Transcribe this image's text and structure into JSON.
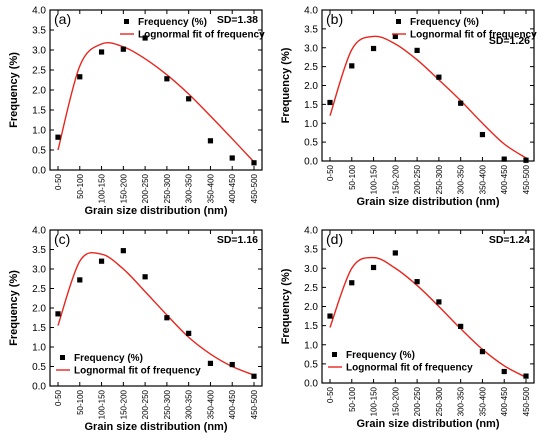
{
  "figure": {
    "ylabel": "Frequency (%)",
    "xlabel": "Grain size distribution (nm)",
    "legend": {
      "marker_label": "Frequency (%)",
      "fit_label": "Lognormal fit of frequency"
    },
    "colors": {
      "fit_line": "#e8261e",
      "marker": "#000000",
      "axes": "#000000"
    }
  },
  "chart_data": [
    {
      "type": "scatter",
      "panel": "(a)",
      "sd_label": "SD=1.38",
      "legend_position": "top-right",
      "categories": [
        "0-50",
        "50-100",
        "100-150",
        "150-200",
        "200-250",
        "250-300",
        "300-350",
        "350-400",
        "400-450",
        "450-500"
      ],
      "series": [
        {
          "name": "Frequency (%)",
          "values": [
            0.82,
            2.33,
            2.95,
            3.02,
            3.3,
            2.28,
            1.78,
            0.73,
            0.3,
            0.18
          ]
        },
        {
          "name": "Lognormal fit of frequency",
          "values": [
            0.5,
            2.6,
            3.15,
            3.08,
            2.78,
            2.38,
            1.9,
            1.35,
            0.78,
            0.2
          ]
        }
      ],
      "ylim": [
        0,
        4.0
      ],
      "yticks": [
        "0.0",
        "0.5",
        "1.0",
        "1.5",
        "2.0",
        "2.5",
        "3.0",
        "3.5",
        "4.0"
      ],
      "grid": false
    },
    {
      "type": "scatter",
      "panel": "(b)",
      "sd_label": "SD=1.26",
      "legend_position": "top-right",
      "categories": [
        "0-50",
        "50-100",
        "100-150",
        "150-200",
        "200-250",
        "250-300",
        "300-350",
        "350-400",
        "400-450",
        "450-500"
      ],
      "series": [
        {
          "name": "Frequency (%)",
          "values": [
            1.55,
            2.52,
            2.98,
            3.3,
            2.93,
            2.22,
            1.53,
            0.7,
            0.05,
            0.02
          ]
        },
        {
          "name": "Lognormal fit of frequency",
          "values": [
            1.2,
            2.95,
            3.3,
            3.1,
            2.68,
            2.15,
            1.6,
            1.0,
            0.45,
            0.08
          ]
        }
      ],
      "ylim": [
        0,
        4.0
      ],
      "yticks": [
        "0.0",
        "0.5",
        "1.0",
        "1.5",
        "2.0",
        "2.5",
        "3.0",
        "3.5",
        "4.0"
      ],
      "grid": false
    },
    {
      "type": "scatter",
      "panel": "(c)",
      "sd_label": "SD=1.16",
      "legend_position": "bottom-left",
      "categories": [
        "0-50",
        "50-100",
        "100-150",
        "150-200",
        "200-250",
        "250-300",
        "300-350",
        "350-400",
        "400-450",
        "450-500"
      ],
      "series": [
        {
          "name": "Frequency (%)",
          "values": [
            1.85,
            2.72,
            3.2,
            3.47,
            2.8,
            1.75,
            1.35,
            0.58,
            0.55,
            0.25
          ]
        },
        {
          "name": "Lognormal fit of frequency",
          "values": [
            1.55,
            3.2,
            3.38,
            3.0,
            2.42,
            1.82,
            1.25,
            0.82,
            0.5,
            0.28
          ]
        }
      ],
      "ylim": [
        0,
        4.0
      ],
      "yticks": [
        "0.0",
        "0.5",
        "1.0",
        "1.5",
        "2.0",
        "2.5",
        "3.0",
        "3.5",
        "4.0"
      ],
      "grid": false
    },
    {
      "type": "scatter",
      "panel": "(d)",
      "sd_label": "SD=1.24",
      "legend_position": "bottom-left",
      "categories": [
        "0-50",
        "50-100",
        "100-150",
        "150-200",
        "200-250",
        "250-300",
        "300-350",
        "350-400",
        "400-450",
        "450-500"
      ],
      "series": [
        {
          "name": "Frequency (%)",
          "values": [
            1.75,
            2.62,
            3.02,
            3.4,
            2.65,
            2.12,
            1.48,
            0.82,
            0.3,
            0.18
          ]
        },
        {
          "name": "Lognormal fit of frequency",
          "values": [
            1.45,
            3.0,
            3.28,
            3.0,
            2.55,
            2.0,
            1.42,
            0.88,
            0.45,
            0.15
          ]
        }
      ],
      "ylim": [
        0,
        4.0
      ],
      "yticks": [
        "0.0",
        "0.5",
        "1.0",
        "1.5",
        "2.0",
        "2.5",
        "3.0",
        "3.5",
        "4.0"
      ],
      "grid": false
    }
  ]
}
